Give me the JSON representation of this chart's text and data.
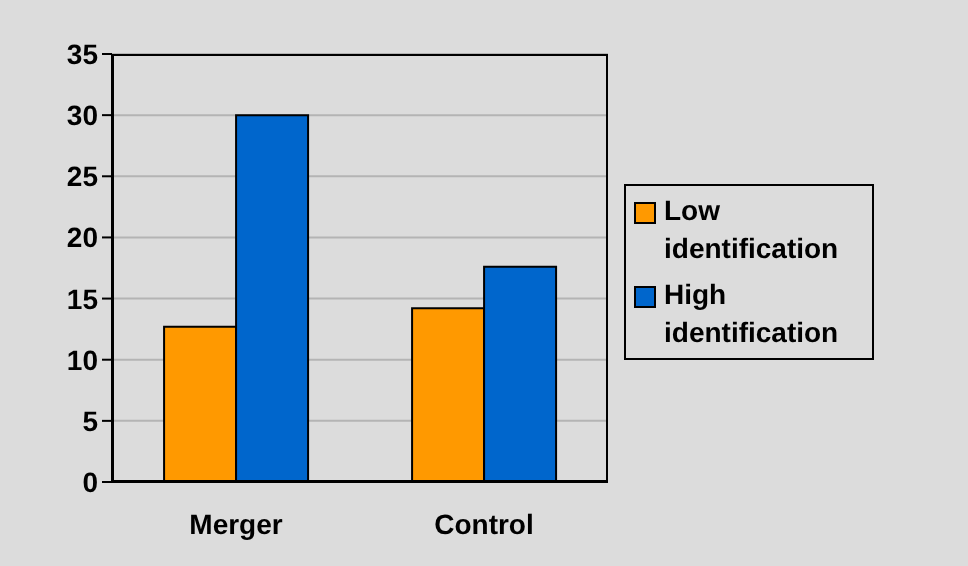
{
  "chart_data": {
    "type": "bar",
    "categories": [
      "Merger",
      "Control"
    ],
    "series": [
      {
        "name": "Low identification",
        "color": "#ff9900",
        "values": [
          12.7,
          14.2
        ]
      },
      {
        "name": "High identification",
        "color": "#0066cc",
        "values": [
          30,
          17.6
        ]
      }
    ],
    "ylim": [
      0,
      35
    ],
    "yticks": [
      0,
      5,
      10,
      15,
      20,
      25,
      30,
      35
    ],
    "grid": "y",
    "legend": "right"
  }
}
